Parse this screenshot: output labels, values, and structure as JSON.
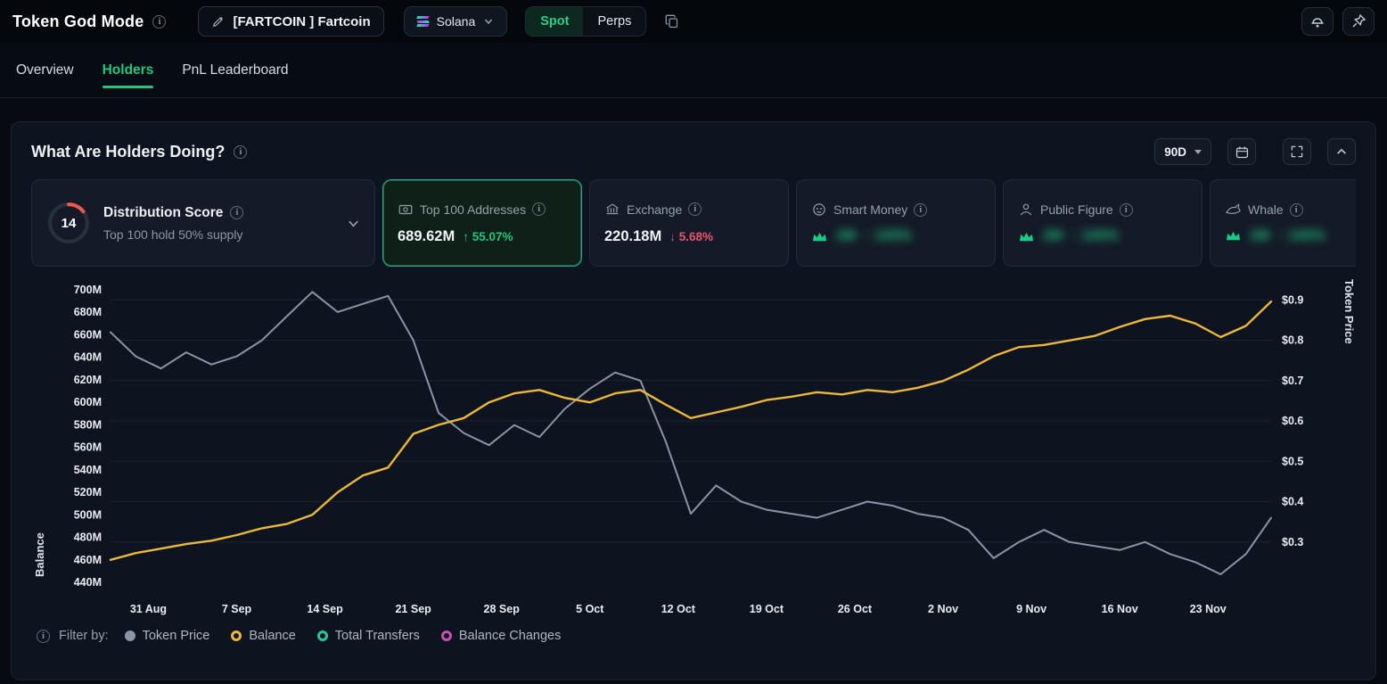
{
  "topbar": {
    "title": "Token God Mode",
    "token": "[FARTCOIN ] Fartcoin",
    "chain": "Solana",
    "spot_label": "Spot",
    "perps_label": "Perps"
  },
  "tabs": {
    "overview": "Overview",
    "holders": "Holders",
    "pnl": "PnL Leaderboard"
  },
  "panel": {
    "title": "What Are Holders Doing?",
    "range": "90D"
  },
  "cards": {
    "distribution": {
      "score": "14",
      "title": "Distribution Score",
      "subtitle": "Top 100 hold 50% supply"
    },
    "top100": {
      "title": "Top 100 Addresses",
      "value": "689.62M",
      "change": "↑ 55.07%",
      "selected": true
    },
    "exchange": {
      "title": "Exchange",
      "value": "220.18M",
      "change": "↓ 5.68%"
    },
    "smart_money": {
      "title": "Smart Money",
      "value": "2M",
      "change": "↑ 100%",
      "blurred": true
    },
    "public_figure": {
      "title": "Public Figure",
      "value": "2M",
      "change": "↑ 100%",
      "blurred": true
    },
    "whale": {
      "title": "Whale",
      "value": "2M",
      "change": "↑ 100%",
      "blurred": true
    }
  },
  "colors": {
    "accent_green": "#1fc77f",
    "negative_red": "#e5566a",
    "balance_yellow": "#ecb73a",
    "price_gray": "#8a94a2"
  },
  "chart_data": {
    "type": "line",
    "x_range": [
      0,
      92
    ],
    "days": [
      0,
      2,
      4,
      6,
      8,
      10,
      12,
      14,
      16,
      18,
      20,
      22,
      24,
      26,
      28,
      30,
      32,
      34,
      36,
      38,
      40,
      42,
      44,
      46,
      48,
      50,
      52,
      54,
      56,
      58,
      60,
      62,
      64,
      66,
      68,
      70,
      72,
      74,
      76,
      78,
      80,
      82,
      84,
      86,
      88,
      90,
      92
    ],
    "x_ticks": [
      {
        "day": 3,
        "label": "31 Aug"
      },
      {
        "day": 10,
        "label": "7 Sep"
      },
      {
        "day": 17,
        "label": "14 Sep"
      },
      {
        "day": 24,
        "label": "21 Sep"
      },
      {
        "day": 31,
        "label": "28 Sep"
      },
      {
        "day": 38,
        "label": "5 Oct"
      },
      {
        "day": 45,
        "label": "12 Oct"
      },
      {
        "day": 52,
        "label": "19 Oct"
      },
      {
        "day": 59,
        "label": "26 Oct"
      },
      {
        "day": 66,
        "label": "2 Nov"
      },
      {
        "day": 73,
        "label": "9 Nov"
      },
      {
        "day": 80,
        "label": "16 Nov"
      },
      {
        "day": 87,
        "label": "23 Nov"
      }
    ],
    "series": [
      {
        "name": "Token Price",
        "axis": "right",
        "color": "#8a94a2",
        "values": [
          0.82,
          0.76,
          0.73,
          0.77,
          0.74,
          0.76,
          0.8,
          0.86,
          0.92,
          0.87,
          0.89,
          0.91,
          0.8,
          0.62,
          0.57,
          0.54,
          0.59,
          0.56,
          0.63,
          0.68,
          0.72,
          0.7,
          0.55,
          0.37,
          0.44,
          0.4,
          0.38,
          0.37,
          0.36,
          0.38,
          0.4,
          0.39,
          0.37,
          0.36,
          0.33,
          0.26,
          0.3,
          0.33,
          0.3,
          0.29,
          0.28,
          0.3,
          0.27,
          0.25,
          0.22,
          0.27,
          0.36
        ]
      },
      {
        "name": "Balance",
        "axis": "left",
        "color": "#ecb73a",
        "values": [
          460,
          466,
          470,
          474,
          477,
          482,
          488,
          492,
          500,
          520,
          535,
          542,
          572,
          580,
          586,
          600,
          608,
          611,
          604,
          600,
          608,
          611,
          598,
          586,
          591,
          596,
          602,
          605,
          609,
          607,
          611,
          609,
          613,
          619,
          629,
          641,
          649,
          651,
          655,
          659,
          667,
          674,
          677,
          670,
          658,
          668,
          689.6
        ]
      }
    ],
    "left_axis": {
      "label": "Balance",
      "min": 440,
      "max": 700,
      "ticks": [
        700,
        680,
        660,
        640,
        620,
        600,
        580,
        560,
        540,
        520,
        500,
        480,
        460,
        440
      ],
      "unit": "M"
    },
    "right_axis": {
      "label": "Token Price",
      "min": 0.2,
      "max": 0.925,
      "ticks": [
        0.9,
        0.8,
        0.7,
        0.6,
        0.5,
        0.4,
        0.3
      ],
      "unit": "$"
    }
  },
  "footer": {
    "filter_label": "Filter by:",
    "legend": [
      {
        "label": "Token Price",
        "color": "#8b95a3",
        "style": "solid"
      },
      {
        "label": "Balance",
        "color": "#ecb73a",
        "style": "ring"
      },
      {
        "label": "Total Transfers",
        "color": "#2bc795",
        "style": "ring"
      },
      {
        "label": "Balance Changes",
        "color": "#c94fb0",
        "style": "ring"
      }
    ]
  }
}
